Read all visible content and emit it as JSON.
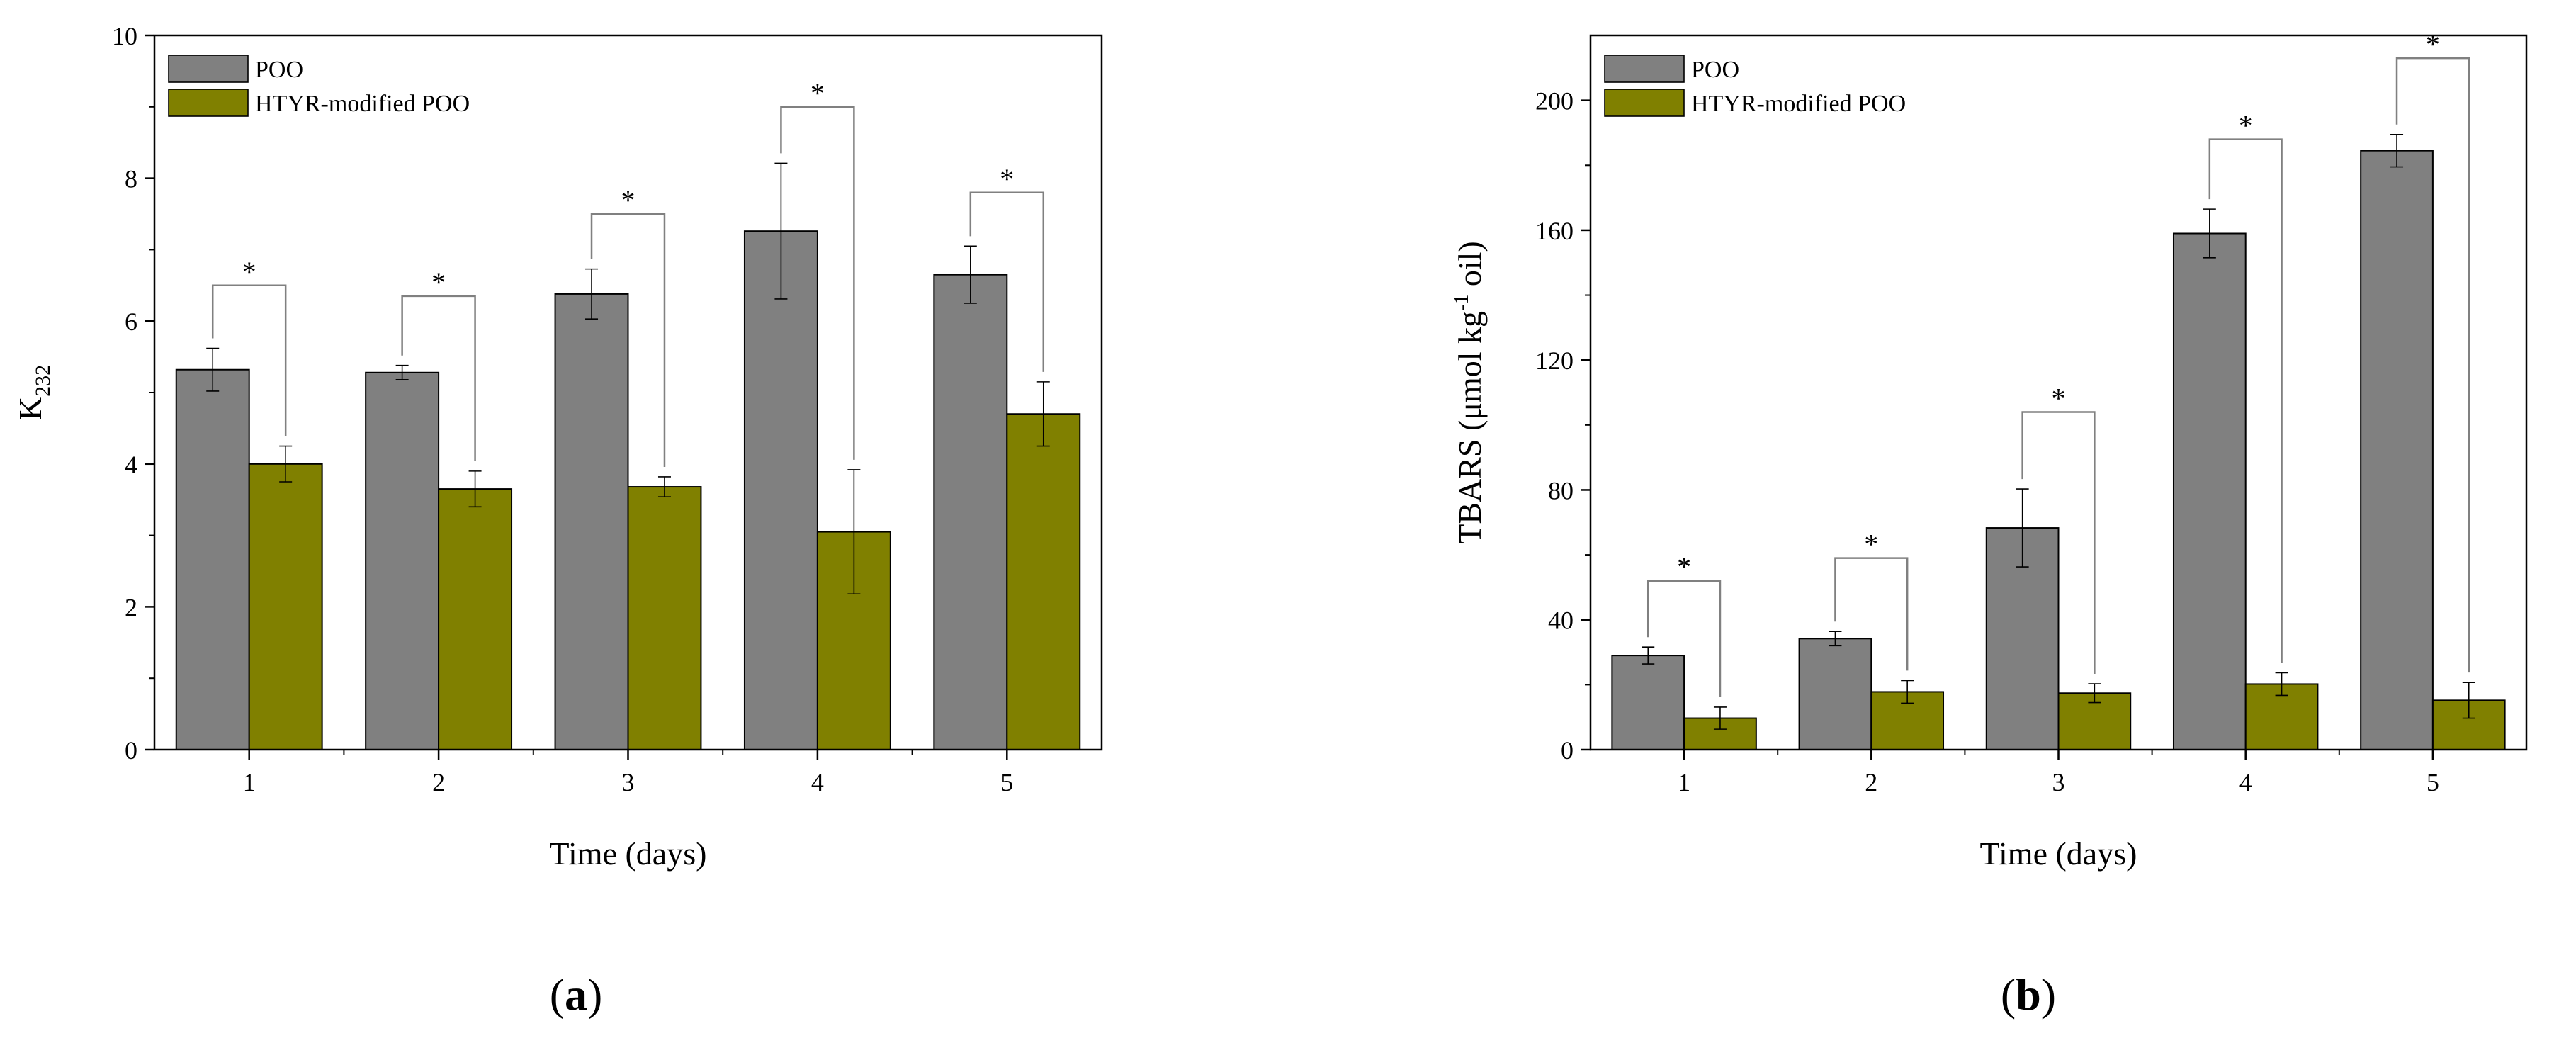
{
  "colors": {
    "poo": "#808080",
    "htyr": "#808000",
    "axis": "#000000",
    "bracket": "#808080"
  },
  "chart_data": [
    {
      "panel": "a",
      "type": "bar",
      "label_open": "(",
      "label_letter": "a",
      "label_close": ")",
      "xlabel": "Time (days)",
      "ylabel_main": "K",
      "ylabel_sub": "232",
      "ylim": [
        0,
        10
      ],
      "yticks": [
        0,
        2,
        4,
        6,
        8,
        10
      ],
      "categories": [
        "1",
        "2",
        "3",
        "4",
        "5"
      ],
      "series": [
        {
          "name": "POO",
          "values": [
            5.32,
            5.28,
            6.38,
            7.26,
            6.65
          ],
          "errors": [
            0.3,
            0.1,
            0.35,
            0.95,
            0.4
          ]
        },
        {
          "name": "HTYR-modified POO",
          "values": [
            4.0,
            3.65,
            3.68,
            3.05,
            4.7
          ],
          "errors": [
            0.25,
            0.25,
            0.14,
            0.87,
            0.45
          ]
        }
      ],
      "significance": [
        {
          "category": "1",
          "marker": "*",
          "bracket_top": 6.5
        },
        {
          "category": "2",
          "marker": "*",
          "bracket_top": 6.35
        },
        {
          "category": "3",
          "marker": "*",
          "bracket_top": 7.5
        },
        {
          "category": "4",
          "marker": "*",
          "bracket_top": 9.0
        },
        {
          "category": "5",
          "marker": "*",
          "bracket_top": 7.8
        }
      ]
    },
    {
      "panel": "b",
      "type": "bar",
      "label_open": "(",
      "label_letter": "b",
      "label_close": ")",
      "xlabel": "Time (days)",
      "ylabel_main": "TBARS (μmol kg",
      "ylabel_sup": "-1",
      "ylabel_end": " oil)",
      "ylim": [
        0,
        220
      ],
      "yticks": [
        0,
        40,
        80,
        120,
        160,
        200
      ],
      "categories": [
        "1",
        "2",
        "3",
        "4",
        "5"
      ],
      "series": [
        {
          "name": "POO",
          "values": [
            29,
            34.2,
            68.3,
            159,
            184.5
          ],
          "errors": [
            2.6,
            2.2,
            12,
            7.5,
            5
          ]
        },
        {
          "name": "HTYR-modified POO",
          "values": [
            9.7,
            17.8,
            17.4,
            20.2,
            15.2
          ],
          "errors": [
            3.4,
            3.5,
            2.9,
            3.5,
            5.5
          ]
        }
      ],
      "significance": [
        {
          "category": "1",
          "marker": "*",
          "bracket_top": 52
        },
        {
          "category": "2",
          "marker": "*",
          "bracket_top": 59
        },
        {
          "category": "3",
          "marker": "*",
          "bracket_top": 104
        },
        {
          "category": "4",
          "marker": "*",
          "bracket_top": 188
        },
        {
          "category": "5",
          "marker": "*",
          "bracket_top": 213
        }
      ]
    }
  ]
}
